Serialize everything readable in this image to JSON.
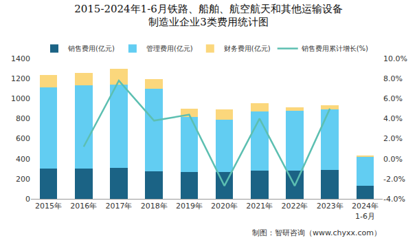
{
  "chart_data": {
    "type": "bar",
    "title": "2015-2024年1-6月铁路、船舶、航空航天和其他运输设备\n制造业企业3类费用统计图",
    "categories": [
      "2015年",
      "2016年",
      "2017年",
      "2018年",
      "2019年",
      "2020年",
      "2021年",
      "2022年",
      "2023年",
      "2024年\n1-6月"
    ],
    "stacked": true,
    "grid": false,
    "legend": "top",
    "series": [
      {
        "name": "销售费用(亿元)",
        "type": "bar",
        "color": "#1b6385",
        "values": [
          300,
          300,
          310,
          275,
          265,
          265,
          280,
          280,
          285,
          130
        ]
      },
      {
        "name": "管理费用(亿元)",
        "type": "bar",
        "color": "#62cdf2",
        "values": [
          815,
          835,
          830,
          820,
          550,
          525,
          590,
          600,
          605,
          290
        ]
      },
      {
        "name": "财务费用(亿元)",
        "type": "bar",
        "color": "#fbd77c",
        "values": [
          120,
          120,
          155,
          100,
          85,
          105,
          85,
          35,
          40,
          10
        ]
      },
      {
        "name": "销售费用累计增长(%)",
        "type": "line",
        "axis": "y2",
        "color": "#5cbfb1",
        "values": [
          null,
          1.2,
          7.8,
          3.8,
          4.4,
          -2.7,
          4.0,
          -2.7,
          5.0,
          null
        ]
      }
    ],
    "ylim": [
      0,
      1400
    ],
    "yticks": [
      0,
      200,
      400,
      600,
      800,
      1000,
      1200,
      1400
    ],
    "y2lim": [
      -4,
      10
    ],
    "y2ticks": [
      {
        "value": -4,
        "label": "-4.0%"
      },
      {
        "value": -2,
        "label": "-2.0%"
      },
      {
        "value": 0,
        "label": "0.0%"
      },
      {
        "value": 2,
        "label": "2.0%"
      },
      {
        "value": 4,
        "label": "4.0%"
      },
      {
        "value": 6,
        "label": "6.0%"
      },
      {
        "value": 8,
        "label": "8.0%"
      },
      {
        "value": 10,
        "label": "10.0%"
      }
    ],
    "annotations": [
      {
        "text": "制图：智研咨询（www.chyxx.com）"
      }
    ]
  }
}
